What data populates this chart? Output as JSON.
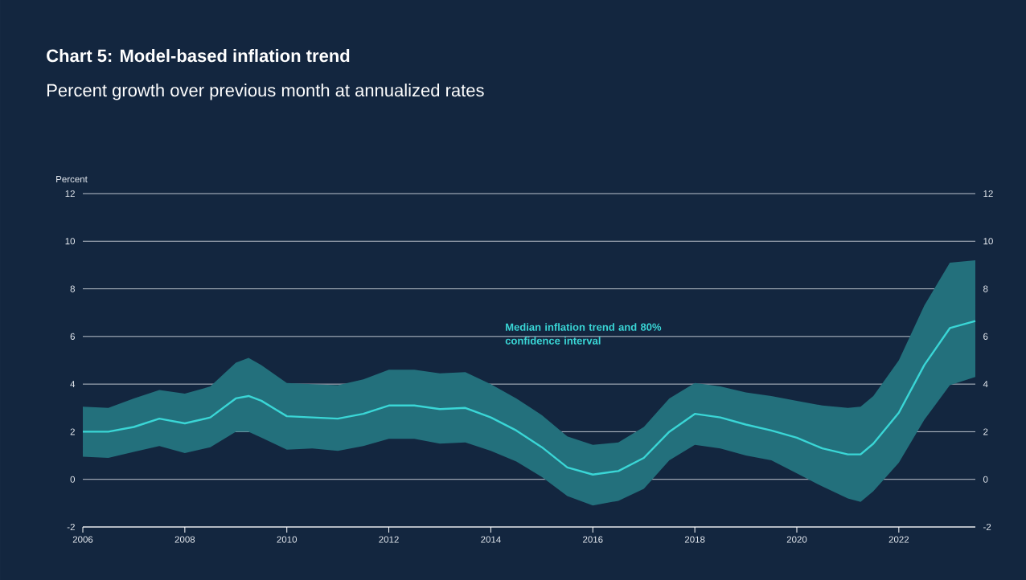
{
  "chart_data": {
    "type": "line",
    "title": "Chart 5: Model-based inflation trend",
    "subtitle": "Percent growth over previous month at annualized rates",
    "ylabel": "Percent",
    "x": [
      "2006-01",
      "2006-07",
      "2007-01",
      "2007-07",
      "2008-01",
      "2008-07",
      "2009-01",
      "2009-04",
      "2009-07",
      "2010-01",
      "2010-07",
      "2011-01",
      "2011-07",
      "2012-01",
      "2012-07",
      "2013-01",
      "2013-07",
      "2014-01",
      "2014-07",
      "2015-01",
      "2015-07",
      "2016-01",
      "2016-07",
      "2017-01",
      "2017-07",
      "2018-01",
      "2018-07",
      "2019-01",
      "2019-07",
      "2020-01",
      "2020-07",
      "2021-01",
      "2021-04",
      "2021-07",
      "2022-01",
      "2022-07",
      "2023-01",
      "2023-07"
    ],
    "series": [
      {
        "name": "Median inflation trend and 80% confidence interval",
        "color": "#3ad6d6",
        "values": [
          2.0,
          2.0,
          2.2,
          2.55,
          2.35,
          2.6,
          3.4,
          3.5,
          3.3,
          2.65,
          2.6,
          2.55,
          2.75,
          3.1,
          3.1,
          2.95,
          3.0,
          2.6,
          2.05,
          1.35,
          0.5,
          0.2,
          0.35,
          0.9,
          2.0,
          2.75,
          2.6,
          2.3,
          2.05,
          1.75,
          1.3,
          1.05,
          1.05,
          1.5,
          2.8,
          4.8,
          6.35,
          6.65
        ],
        "lower": [
          0.95,
          0.9,
          1.15,
          1.4,
          1.1,
          1.35,
          2.0,
          2.0,
          1.75,
          1.25,
          1.3,
          1.2,
          1.4,
          1.7,
          1.7,
          1.5,
          1.55,
          1.2,
          0.75,
          0.1,
          -0.7,
          -1.1,
          -0.9,
          -0.4,
          0.8,
          1.45,
          1.3,
          1.0,
          0.8,
          0.25,
          -0.3,
          -0.8,
          -0.95,
          -0.5,
          0.7,
          2.5,
          3.95,
          4.3
        ],
        "upper": [
          3.05,
          3.0,
          3.4,
          3.75,
          3.6,
          3.9,
          4.9,
          5.1,
          4.8,
          4.05,
          4.0,
          3.95,
          4.2,
          4.6,
          4.6,
          4.45,
          4.5,
          4.0,
          3.4,
          2.7,
          1.8,
          1.45,
          1.55,
          2.2,
          3.4,
          4.05,
          3.9,
          3.65,
          3.5,
          3.3,
          3.1,
          3.0,
          3.05,
          3.5,
          5.0,
          7.3,
          9.1,
          9.2
        ]
      }
    ],
    "xlim": [
      "2006-01",
      "2023-07"
    ],
    "xticks": [
      "2006",
      "2008",
      "2010",
      "2012",
      "2014",
      "2016",
      "2018",
      "2020",
      "2022"
    ],
    "ylim": [
      -2,
      12
    ],
    "yticks": [
      -2,
      0,
      2,
      4,
      6,
      8,
      10,
      12
    ],
    "y2lim": [
      -2,
      12
    ],
    "y2ticks": [
      -2,
      0,
      2,
      4,
      6,
      8,
      10,
      12
    ],
    "grid": "y"
  }
}
